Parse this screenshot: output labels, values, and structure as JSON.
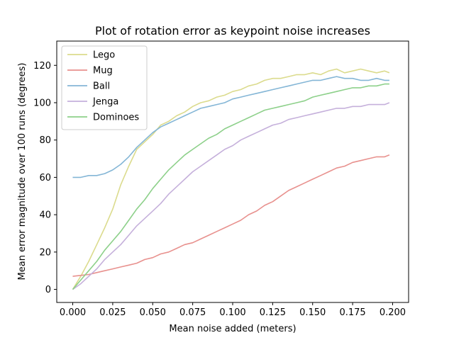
{
  "chart_data": {
    "type": "line",
    "title": "Plot of rotation error as keypoint noise increases",
    "xlabel": "Mean noise added (meters)",
    "ylabel": "Mean error magnitude over 100 runs (degrees)",
    "xlim": [
      -0.01,
      0.21
    ],
    "ylim": [
      -7,
      133
    ],
    "xticks": [
      0.0,
      0.025,
      0.05,
      0.075,
      0.1,
      0.125,
      0.15,
      0.175,
      0.2
    ],
    "xtick_labels": [
      "0.000",
      "0.025",
      "0.050",
      "0.075",
      "0.100",
      "0.125",
      "0.150",
      "0.175",
      "0.200"
    ],
    "yticks": [
      0,
      20,
      40,
      60,
      80,
      100,
      120
    ],
    "ytick_labels": [
      "0",
      "20",
      "40",
      "60",
      "80",
      "100",
      "120"
    ],
    "grid": false,
    "legend_position": "top-left",
    "series": [
      {
        "name": "Lego",
        "color": "#dbdb8d",
        "x": [
          0.0,
          0.005,
          0.01,
          0.015,
          0.02,
          0.025,
          0.03,
          0.035,
          0.04,
          0.045,
          0.05,
          0.055,
          0.06,
          0.065,
          0.07,
          0.075,
          0.08,
          0.085,
          0.09,
          0.095,
          0.1,
          0.105,
          0.11,
          0.115,
          0.12,
          0.125,
          0.13,
          0.135,
          0.14,
          0.145,
          0.15,
          0.155,
          0.16,
          0.165,
          0.17,
          0.175,
          0.18,
          0.185,
          0.19,
          0.195,
          0.198
        ],
        "values": [
          0,
          7,
          15,
          24,
          33,
          43,
          56,
          66,
          75,
          79,
          83,
          88,
          90,
          93,
          95,
          98,
          100,
          101,
          103,
          104,
          106,
          107,
          109,
          110,
          112,
          113,
          113,
          114,
          115,
          115,
          116,
          115,
          117,
          118,
          116,
          117,
          118,
          117,
          116,
          117,
          116
        ]
      },
      {
        "name": "Mug",
        "color": "#e8918e",
        "x": [
          0.0,
          0.005,
          0.01,
          0.015,
          0.02,
          0.025,
          0.03,
          0.035,
          0.04,
          0.045,
          0.05,
          0.055,
          0.06,
          0.065,
          0.07,
          0.075,
          0.08,
          0.085,
          0.09,
          0.095,
          0.1,
          0.105,
          0.11,
          0.115,
          0.12,
          0.125,
          0.13,
          0.135,
          0.14,
          0.145,
          0.15,
          0.155,
          0.16,
          0.165,
          0.17,
          0.175,
          0.18,
          0.185,
          0.19,
          0.195,
          0.198
        ],
        "values": [
          7,
          7.5,
          8,
          9,
          10,
          11,
          12,
          13,
          14,
          16,
          17,
          19,
          20,
          22,
          24,
          25,
          27,
          29,
          31,
          33,
          35,
          37,
          40,
          42,
          45,
          47,
          50,
          53,
          55,
          57,
          59,
          61,
          63,
          65,
          66,
          68,
          69,
          70,
          71,
          71,
          72
        ]
      },
      {
        "name": "Ball",
        "color": "#84b6d6",
        "x": [
          0.0,
          0.005,
          0.01,
          0.015,
          0.02,
          0.025,
          0.03,
          0.035,
          0.04,
          0.045,
          0.05,
          0.055,
          0.06,
          0.065,
          0.07,
          0.075,
          0.08,
          0.085,
          0.09,
          0.095,
          0.1,
          0.105,
          0.11,
          0.115,
          0.12,
          0.125,
          0.13,
          0.135,
          0.14,
          0.145,
          0.15,
          0.155,
          0.16,
          0.165,
          0.17,
          0.175,
          0.18,
          0.185,
          0.19,
          0.195,
          0.198
        ],
        "values": [
          60,
          60,
          61,
          61,
          62,
          64,
          67,
          71,
          76,
          80,
          84,
          87,
          89,
          91,
          93,
          95,
          97,
          98,
          99,
          100,
          102,
          103,
          104,
          105,
          106,
          107,
          108,
          109,
          110,
          111,
          112,
          112,
          113,
          114,
          113,
          113,
          112,
          112,
          113,
          112,
          112
        ]
      },
      {
        "name": "Jenga",
        "color": "#c5b0db",
        "x": [
          0.0,
          0.005,
          0.01,
          0.015,
          0.02,
          0.025,
          0.03,
          0.035,
          0.04,
          0.045,
          0.05,
          0.055,
          0.06,
          0.065,
          0.07,
          0.075,
          0.08,
          0.085,
          0.09,
          0.095,
          0.1,
          0.105,
          0.11,
          0.115,
          0.12,
          0.125,
          0.13,
          0.135,
          0.14,
          0.145,
          0.15,
          0.155,
          0.16,
          0.165,
          0.17,
          0.175,
          0.18,
          0.185,
          0.19,
          0.195,
          0.198
        ],
        "values": [
          0,
          3,
          7,
          11,
          16,
          20,
          24,
          29,
          34,
          38,
          42,
          46,
          51,
          55,
          59,
          63,
          66,
          69,
          72,
          75,
          77,
          80,
          82,
          84,
          86,
          88,
          89,
          91,
          92,
          93,
          94,
          95,
          96,
          97,
          97,
          98,
          98,
          99,
          99,
          99,
          100
        ]
      },
      {
        "name": "Dominoes",
        "color": "#8dd08a",
        "x": [
          0.0,
          0.005,
          0.01,
          0.015,
          0.02,
          0.025,
          0.03,
          0.035,
          0.04,
          0.045,
          0.05,
          0.055,
          0.06,
          0.065,
          0.07,
          0.075,
          0.08,
          0.085,
          0.09,
          0.095,
          0.1,
          0.105,
          0.11,
          0.115,
          0.12,
          0.125,
          0.13,
          0.135,
          0.14,
          0.145,
          0.15,
          0.155,
          0.16,
          0.165,
          0.17,
          0.175,
          0.18,
          0.185,
          0.19,
          0.195,
          0.198
        ],
        "values": [
          0,
          5,
          10,
          15,
          21,
          26,
          31,
          37,
          43,
          48,
          54,
          59,
          64,
          68,
          72,
          75,
          78,
          81,
          83,
          86,
          88,
          90,
          92,
          94,
          96,
          97,
          98,
          99,
          100,
          101,
          103,
          104,
          105,
          106,
          107,
          108,
          108,
          109,
          109,
          110,
          110
        ]
      }
    ]
  }
}
